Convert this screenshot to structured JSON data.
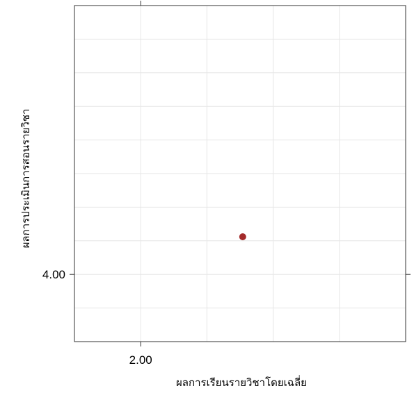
{
  "chart_data": {
    "type": "scatter",
    "title": "",
    "xlabel": "ผลการเรียนรายวิชาโดยเฉลี่ย",
    "ylabel": "ผลการประเมินการสอนรายวิชา",
    "xlim": [
      1.95,
      2.2
    ],
    "ylim": [
      3.95,
      4.2
    ],
    "x_ticks": [
      2.0
    ],
    "x_tick_labels": [
      "2.00"
    ],
    "y_ticks": [
      4.0
    ],
    "y_tick_labels": [
      "4.00"
    ],
    "x_minor_grid": [
      2.05,
      2.1,
      2.15
    ],
    "y_minor_grid": [
      3.975,
      4.025,
      4.05,
      4.075,
      4.1,
      4.125,
      4.15,
      4.175
    ],
    "grid": true,
    "legend": "none",
    "points": [
      {
        "x": 2.077,
        "y": 4.028
      }
    ],
    "colors": {
      "point": "#a32a2a",
      "grid": "#e6e6e6",
      "frame": "#333333"
    }
  }
}
